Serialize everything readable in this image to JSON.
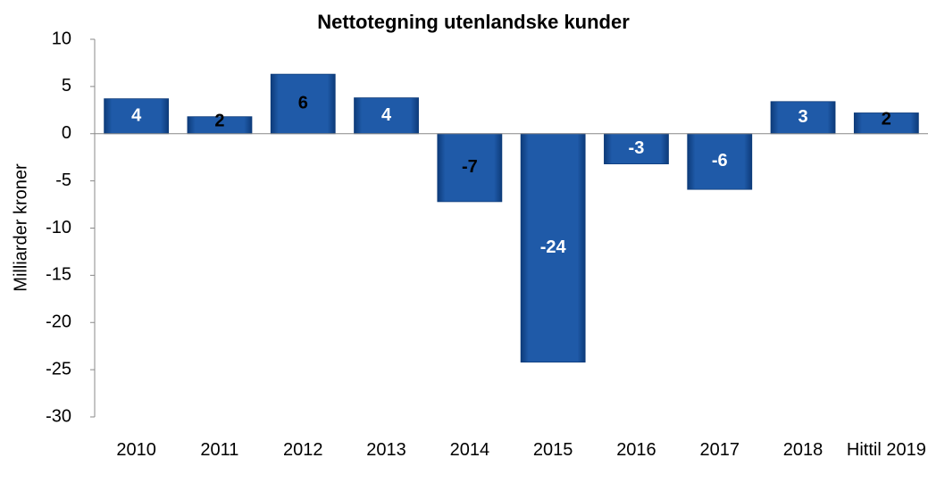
{
  "chart_data": {
    "type": "bar",
    "title": "Nettotegning utenlandske kunder",
    "y_label": "Milliarder kroner",
    "categories": [
      "2010",
      "2011",
      "2012",
      "2013",
      "2014",
      "2015",
      "2016",
      "2017",
      "2018",
      "Hittil 2019"
    ],
    "values": [
      3.7,
      1.8,
      6.3,
      3.8,
      -7.2,
      -24.2,
      -3.2,
      -5.9,
      3.4,
      2.2
    ],
    "value_labels": [
      "4",
      "2",
      "6",
      "4",
      "-7",
      "-24",
      "-3",
      "-6",
      "3",
      "2"
    ],
    "value_label_colors": [
      "#ffffff",
      "#000000",
      "#000000",
      "#ffffff",
      "#000000",
      "#ffffff",
      "#ffffff",
      "#ffffff",
      "#ffffff",
      "#000000"
    ],
    "color": "#1f5aa8",
    "ylim": [
      -30,
      10
    ],
    "yticks": [
      -30,
      -25,
      -20,
      -15,
      -10,
      -5,
      0,
      5,
      10
    ],
    "grid": false
  }
}
